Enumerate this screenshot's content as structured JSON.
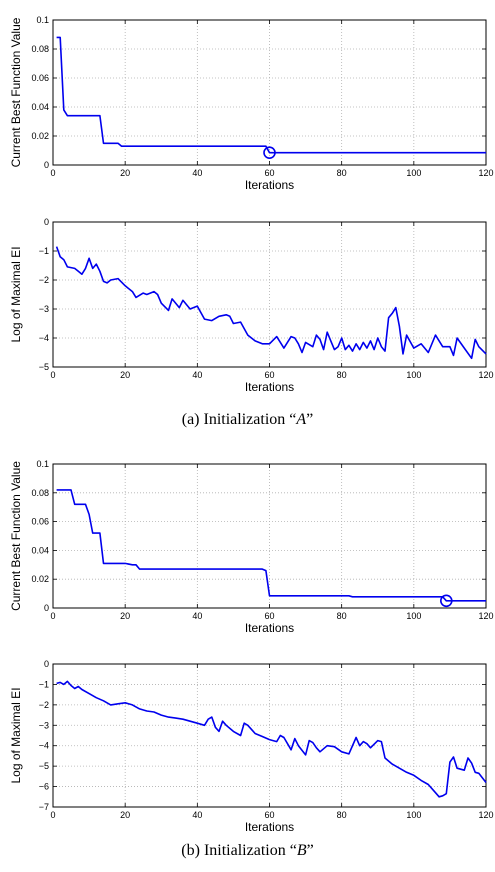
{
  "captions": {
    "a": {
      "prefix": "(a)  Initialization “",
      "letter": "A",
      "suffix": "”"
    },
    "b": {
      "prefix": "(b)  Initialization “",
      "letter": "B",
      "suffix": "”"
    }
  },
  "colors": {
    "series": "#0000ee",
    "grid": "#b0b0b0",
    "axis": "#000000"
  },
  "chart_data": [
    {
      "id": "A-best",
      "type": "line",
      "title": "",
      "xlabel": "Iterations",
      "ylabel": "Current Best Function Value",
      "xlim": [
        0,
        120
      ],
      "ylim": [
        0,
        0.1
      ],
      "xticks": [
        0,
        20,
        40,
        60,
        80,
        100,
        120
      ],
      "yticks": [
        0,
        0.02,
        0.04,
        0.06,
        0.08,
        0.1
      ],
      "ytick_labels": [
        "0",
        "0.02",
        "0.04",
        "0.06",
        "0.08",
        "0.1"
      ],
      "grid": true,
      "series": [
        {
          "x": [
            1,
            2,
            3,
            4,
            13,
            14,
            18,
            19,
            27,
            59,
            60,
            120
          ],
          "y": [
            0.088,
            0.088,
            0.038,
            0.034,
            0.034,
            0.015,
            0.015,
            0.013,
            0.013,
            0.013,
            0.0085,
            0.0085
          ]
        }
      ],
      "marker": {
        "x": 60,
        "y": 0.0085,
        "shape": "circle"
      }
    },
    {
      "id": "A-ei",
      "type": "line",
      "title": "",
      "xlabel": "Iterations",
      "ylabel": "Log of Maximal EI",
      "xlim": [
        0,
        120
      ],
      "ylim": [
        -5,
        0
      ],
      "xticks": [
        0,
        20,
        40,
        60,
        80,
        100,
        120
      ],
      "yticks": [
        -5,
        -4,
        -3,
        -2,
        -1,
        0
      ],
      "ytick_labels": [
        "−5",
        "−4",
        "−3",
        "−2",
        "−1",
        "0"
      ],
      "grid": true,
      "series": [
        {
          "x": [
            1,
            2,
            3,
            4,
            6,
            7,
            8,
            9,
            10,
            11,
            12,
            13,
            14,
            15,
            16,
            18,
            20,
            22,
            23,
            25,
            26,
            28,
            29,
            30,
            32,
            33,
            35,
            36,
            38,
            40,
            42,
            44,
            46,
            48,
            49,
            50,
            52,
            54,
            56,
            58,
            60,
            62,
            64,
            66,
            67,
            68,
            69,
            70,
            72,
            73,
            74,
            75,
            76,
            77,
            78,
            79,
            80,
            81,
            82,
            83,
            84,
            85,
            86,
            87,
            88,
            89,
            90,
            91,
            92,
            93,
            94,
            95,
            96,
            97,
            98,
            100,
            102,
            104,
            106,
            108,
            110,
            111,
            112,
            114,
            116,
            117,
            118,
            120
          ],
          "y": [
            -0.85,
            -1.2,
            -1.3,
            -1.55,
            -1.6,
            -1.7,
            -1.8,
            -1.6,
            -1.25,
            -1.6,
            -1.45,
            -1.7,
            -2.05,
            -2.1,
            -2.0,
            -1.95,
            -2.2,
            -2.4,
            -2.6,
            -2.45,
            -2.5,
            -2.4,
            -2.5,
            -2.8,
            -3.05,
            -2.65,
            -2.95,
            -2.7,
            -3.0,
            -2.9,
            -3.35,
            -3.4,
            -3.25,
            -3.2,
            -3.25,
            -3.5,
            -3.45,
            -3.9,
            -4.1,
            -4.2,
            -4.2,
            -3.95,
            -4.35,
            -3.95,
            -4.0,
            -4.2,
            -4.5,
            -4.15,
            -4.3,
            -3.9,
            -4.05,
            -4.4,
            -3.8,
            -4.1,
            -4.4,
            -4.3,
            -4.0,
            -4.4,
            -4.25,
            -4.45,
            -4.2,
            -4.4,
            -4.15,
            -4.35,
            -4.1,
            -4.4,
            -4.0,
            -4.3,
            -4.45,
            -3.3,
            -3.15,
            -2.95,
            -3.6,
            -4.55,
            -3.9,
            -4.35,
            -4.2,
            -4.5,
            -3.9,
            -4.3,
            -4.3,
            -4.6,
            -4.0,
            -4.35,
            -4.7,
            -4.05,
            -4.3,
            -4.55
          ]
        }
      ]
    },
    {
      "id": "B-best",
      "type": "line",
      "title": "",
      "xlabel": "Iterations",
      "ylabel": "Current Best Function Value",
      "xlim": [
        0,
        120
      ],
      "ylim": [
        0,
        0.1
      ],
      "xticks": [
        0,
        20,
        40,
        60,
        80,
        100,
        120
      ],
      "yticks": [
        0,
        0.02,
        0.04,
        0.06,
        0.08,
        0.1
      ],
      "ytick_labels": [
        "0",
        "0.02",
        "0.04",
        "0.06",
        "0.08",
        "0.1"
      ],
      "grid": true,
      "series": [
        {
          "x": [
            1,
            5,
            6,
            9,
            10,
            11,
            13,
            14,
            20,
            22,
            23,
            24,
            58,
            59,
            60,
            82,
            83,
            108,
            109,
            120
          ],
          "y": [
            0.082,
            0.082,
            0.072,
            0.072,
            0.065,
            0.052,
            0.052,
            0.031,
            0.031,
            0.03,
            0.03,
            0.027,
            0.027,
            0.026,
            0.0085,
            0.0085,
            0.0078,
            0.0078,
            0.005,
            0.005
          ]
        }
      ],
      "marker": {
        "x": 109,
        "y": 0.005,
        "shape": "circle"
      }
    },
    {
      "id": "B-ei",
      "type": "line",
      "title": "",
      "xlabel": "Iterations",
      "ylabel": "Log of Maximal EI",
      "xlim": [
        0,
        120
      ],
      "ylim": [
        -7,
        0
      ],
      "xticks": [
        0,
        20,
        40,
        60,
        80,
        100,
        120
      ],
      "yticks": [
        -7,
        -6,
        -5,
        -4,
        -3,
        -2,
        -1,
        0
      ],
      "ytick_labels": [
        "−7",
        "−6",
        "−5",
        "−4",
        "−3",
        "−2",
        "−1",
        "0"
      ],
      "grid": true,
      "series": [
        {
          "x": [
            1,
            2,
            3,
            4,
            5,
            6,
            7,
            8,
            10,
            12,
            14,
            16,
            18,
            20,
            22,
            24,
            26,
            28,
            30,
            32,
            34,
            36,
            38,
            40,
            42,
            43,
            44,
            45,
            46,
            47,
            48,
            50,
            52,
            53,
            54,
            56,
            58,
            60,
            62,
            63,
            64,
            66,
            67,
            68,
            70,
            71,
            72,
            73,
            74,
            76,
            78,
            80,
            82,
            84,
            85,
            86,
            87,
            88,
            90,
            91,
            92,
            94,
            96,
            98,
            100,
            102,
            104,
            106,
            107,
            108,
            109,
            110,
            111,
            112,
            114,
            115,
            116,
            117,
            118,
            120
          ],
          "y": [
            -0.95,
            -0.9,
            -1.0,
            -0.85,
            -1.05,
            -1.2,
            -1.1,
            -1.25,
            -1.45,
            -1.65,
            -1.8,
            -2.0,
            -1.95,
            -1.9,
            -2.0,
            -2.2,
            -2.3,
            -2.35,
            -2.5,
            -2.6,
            -2.65,
            -2.7,
            -2.8,
            -2.9,
            -3.0,
            -2.7,
            -2.6,
            -3.1,
            -3.3,
            -2.8,
            -3.0,
            -3.3,
            -3.5,
            -2.9,
            -3.0,
            -3.4,
            -3.55,
            -3.7,
            -3.8,
            -3.5,
            -3.6,
            -4.2,
            -3.65,
            -4.0,
            -4.45,
            -3.75,
            -3.85,
            -4.1,
            -4.3,
            -4.0,
            -4.05,
            -4.3,
            -4.4,
            -3.6,
            -4.0,
            -3.8,
            -3.9,
            -4.1,
            -3.75,
            -3.8,
            -4.6,
            -4.9,
            -5.1,
            -5.3,
            -5.45,
            -5.7,
            -5.9,
            -6.3,
            -6.5,
            -6.45,
            -6.35,
            -4.8,
            -4.55,
            -5.1,
            -5.2,
            -4.6,
            -4.85,
            -5.3,
            -5.35,
            -5.8
          ]
        }
      ]
    }
  ]
}
